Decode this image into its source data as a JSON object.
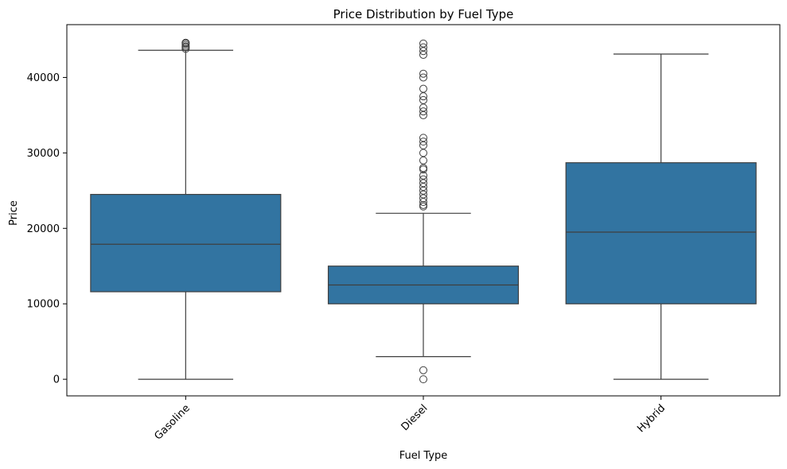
{
  "chart_data": {
    "type": "box",
    "title": "Price Distribution by Fuel Type",
    "xlabel": "Fuel Type",
    "ylabel": "Price",
    "ylim": [
      -2200,
      47000
    ],
    "yticks": [
      0,
      10000,
      20000,
      30000,
      40000
    ],
    "grid": false,
    "color": "#3274a1",
    "categories": [
      "Gasoline",
      "Diesel",
      "Hybrid"
    ],
    "boxes": [
      {
        "name": "Gasoline",
        "whisker_low": 0,
        "q1": 11600,
        "median": 17900,
        "q3": 24500,
        "whisker_high": 43600,
        "outliers": [
          43800,
          44000,
          44100,
          44300,
          44500,
          44600
        ]
      },
      {
        "name": "Diesel",
        "whisker_low": 3000,
        "q1": 10000,
        "median": 12500,
        "q3": 15000,
        "whisker_high": 22000,
        "outliers": [
          0,
          1200,
          22900,
          23100,
          23500,
          24000,
          24500,
          25000,
          25500,
          26000,
          26500,
          27000,
          27800,
          28000,
          29000,
          30000,
          31000,
          31500,
          32000,
          35000,
          35500,
          36000,
          37000,
          37500,
          38500,
          40000,
          40500,
          43000,
          43500,
          44000,
          44500
        ]
      },
      {
        "name": "Hybrid",
        "whisker_low": 0,
        "q1": 10000,
        "median": 19500,
        "q3": 28700,
        "whisker_high": 43100,
        "outliers": []
      }
    ]
  }
}
